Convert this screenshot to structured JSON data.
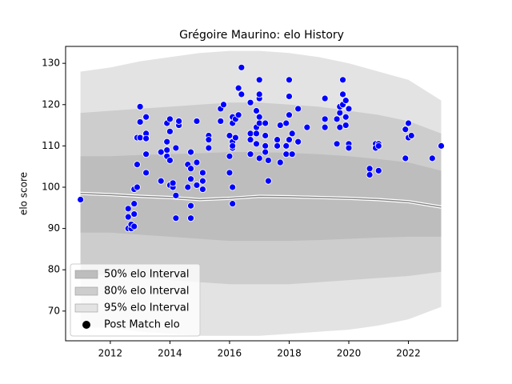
{
  "chart_data": {
    "type": "scatter",
    "title": "Grégoire Maurino: elo History",
    "ylabel": "elo score",
    "xlim": [
      2010.5,
      2023.65
    ],
    "ylim": [
      62.8,
      134.1
    ],
    "xticks": [
      2012,
      2014,
      2016,
      2018,
      2020,
      2022
    ],
    "yticks": [
      70,
      80,
      90,
      100,
      110,
      120,
      130
    ],
    "legend": "lower left",
    "band_x": [
      2011,
      2012,
      2013,
      2014,
      2015,
      2016,
      2017,
      2018,
      2019,
      2020,
      2021,
      2022,
      2023.1
    ],
    "mean": [
      98.5,
      98.2,
      97.8,
      97.5,
      97.0,
      97.3,
      97.8,
      97.7,
      97.5,
      97.3,
      97.0,
      96.5,
      95.2
    ],
    "mean_color": "#888888",
    "series": [
      {
        "name": "50% elo Interval",
        "color": "#bdbdbd",
        "upper": [
          107.5,
          107.5,
          107.8,
          108,
          108.2,
          108.5,
          108.5,
          108.3,
          108,
          107.5,
          106.8,
          106,
          104
        ],
        "lower": [
          89,
          89,
          88.5,
          88,
          87.5,
          87,
          87,
          87,
          87.2,
          87.5,
          87.8,
          88,
          88
        ]
      },
      {
        "name": "80% elo Interval",
        "color": "#cdcdcd",
        "upper": [
          118,
          118.5,
          119,
          119.5,
          120,
          120.5,
          120.5,
          120,
          119.5,
          118.5,
          117.5,
          116,
          113
        ],
        "lower": [
          79,
          78.5,
          78,
          77.5,
          77,
          76.5,
          76.5,
          76.5,
          77,
          77.5,
          78,
          78.5,
          79.5
        ]
      },
      {
        "name": "95% elo Interval",
        "color": "#e3e3e3",
        "upper": [
          128,
          129,
          130.5,
          131.5,
          132.5,
          133,
          133,
          132.5,
          131.5,
          130,
          128,
          126,
          121
        ],
        "lower": [
          66,
          66,
          65,
          64.5,
          64,
          64,
          64,
          64.5,
          65,
          65.5,
          66.5,
          68,
          71
        ]
      },
      {
        "name": "Post Match elo",
        "color": "#0000ff",
        "x": [
          2011.0,
          2012.6,
          2012.6,
          2012.6,
          2012.7,
          2012.7,
          2012.8,
          2012.8,
          2012.8,
          2012.8,
          2012.9,
          2012.9,
          2012.9,
          2013.0,
          2013.0,
          2013.0,
          2013.2,
          2013.2,
          2013.2,
          2013.2,
          2013.2,
          2013.2,
          2013.7,
          2013.7,
          2013.9,
          2013.9,
          2013.9,
          2013.9,
          2014.0,
          2014.0,
          2014.0,
          2014.0,
          2014.1,
          2014.1,
          2014.2,
          2014.2,
          2014.2,
          2014.3,
          2014.3,
          2014.6,
          2014.6,
          2014.7,
          2014.7,
          2014.7,
          2014.7,
          2014.7,
          2014.9,
          2014.9,
          2014.9,
          2015.1,
          2015.1,
          2015.1,
          2015.3,
          2015.3,
          2015.3,
          2015.7,
          2015.7,
          2015.8,
          2016.0,
          2016.0,
          2016.0,
          2016.1,
          2016.1,
          2016.1,
          2016.1,
          2016.1,
          2016.1,
          2016.1,
          2016.2,
          2016.2,
          2016.3,
          2016.3,
          2016.4,
          2016.4,
          2016.7,
          2016.7,
          2016.7,
          2016.7,
          2016.9,
          2016.9,
          2016.9,
          2016.9,
          2017.0,
          2017.0,
          2017.0,
          2017.0,
          2017.0,
          2017.0,
          2017.2,
          2017.2,
          2017.2,
          2017.2,
          2017.3,
          2017.3,
          2017.6,
          2017.6,
          2017.7,
          2017.7,
          2017.9,
          2017.9,
          2017.9,
          2018.0,
          2018.0,
          2018.0,
          2018.0,
          2018.1,
          2018.1,
          2018.3,
          2018.3,
          2018.6,
          2019.2,
          2019.2,
          2019.2,
          2019.6,
          2019.6,
          2019.7,
          2019.7,
          2019.7,
          2019.8,
          2019.8,
          2019.8,
          2019.9,
          2019.9,
          2019.9,
          2020.0,
          2020.0,
          2020.0,
          2020.7,
          2020.7,
          2020.9,
          2020.9,
          2021.0,
          2021.0,
          2021.0,
          2021.9,
          2021.9,
          2022.0,
          2022.0,
          2022.1,
          2022.8,
          2023.1
        ],
        "values": [
          97,
          90,
          92.8,
          94.8,
          90,
          91,
          93.5,
          96,
          99.5,
          90.5,
          100,
          105.5,
          112,
          119.5,
          112,
          115.8,
          112,
          117,
          113,
          108,
          103.5,
          111.8,
          108.5,
          101.5,
          109,
          111,
          115.5,
          107.5,
          116.5,
          113.5,
          106.5,
          100.5,
          100,
          101,
          92.5,
          98,
          109.5,
          115,
          116,
          105.5,
          100,
          92.5,
          95.5,
          104.5,
          102,
          108.5,
          116,
          106,
          100.5,
          103.5,
          101.5,
          99.5,
          112.5,
          109.5,
          111.5,
          119,
          116,
          120,
          103.5,
          112.5,
          107.5,
          96,
          100,
          109.5,
          111,
          115.5,
          117,
          110,
          112,
          116.5,
          124,
          117.5,
          129,
          122.5,
          120.5,
          113,
          111.5,
          108,
          118.5,
          114.5,
          110.5,
          113,
          121.5,
          126,
          122.5,
          117,
          115.5,
          107,
          112.5,
          110,
          108.5,
          115.5,
          101.5,
          106.5,
          111.5,
          110,
          115,
          106,
          108,
          110,
          115.5,
          126,
          122,
          117.5,
          111.5,
          113,
          108,
          119,
          111,
          114.5,
          121.5,
          116.5,
          114.5,
          116.5,
          110.5,
          118,
          119.5,
          114.5,
          122.5,
          126,
          120,
          121,
          117,
          115,
          119,
          110.5,
          109.5,
          103,
          104.5,
          110.5,
          109.5,
          110.5,
          104,
          110,
          107,
          114,
          115.5,
          112,
          112.5,
          107,
          110
        ]
      }
    ]
  }
}
